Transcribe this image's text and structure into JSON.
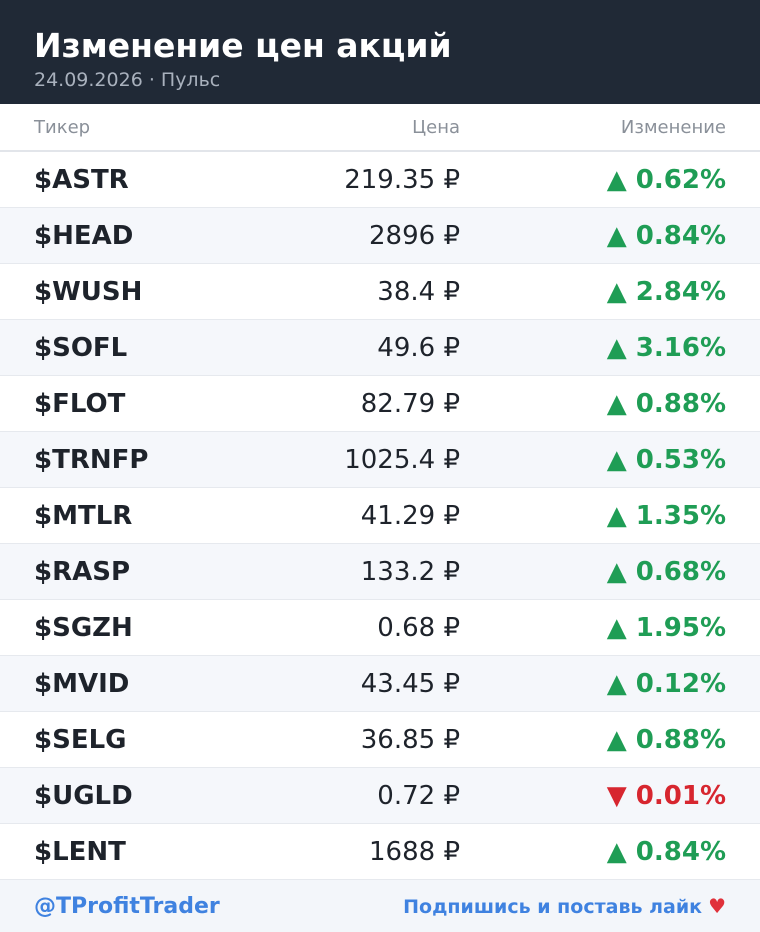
{
  "header": {
    "title": "Изменение цен акций",
    "subtitle": "24.09.2026 · Пульс"
  },
  "table": {
    "columns": [
      "Тикер",
      "Цена",
      "Изменение"
    ],
    "rows": [
      {
        "ticker": "$ASTR",
        "price": "219.35 ₽",
        "change": "▲ 0.62%",
        "color": "#1f9d55"
      },
      {
        "ticker": "$HEAD",
        "price": "2896 ₽",
        "change": "▲ 0.84%",
        "color": "#1f9d55"
      },
      {
        "ticker": "$WUSH",
        "price": "38.4 ₽",
        "change": "▲ 2.84%",
        "color": "#1f9d55"
      },
      {
        "ticker": "$SOFL",
        "price": "49.6 ₽",
        "change": "▲ 3.16%",
        "color": "#1f9d55"
      },
      {
        "ticker": "$FLOT",
        "price": "82.79 ₽",
        "change": "▲ 0.88%",
        "color": "#1f9d55"
      },
      {
        "ticker": "$TRNFP",
        "price": "1025.4 ₽",
        "change": "▲ 0.53%",
        "color": "#1f9d55"
      },
      {
        "ticker": "$MTLR",
        "price": "41.29 ₽",
        "change": "▲ 1.35%",
        "color": "#1f9d55"
      },
      {
        "ticker": "$RASP",
        "price": "133.2 ₽",
        "change": "▲ 0.68%",
        "color": "#1f9d55"
      },
      {
        "ticker": "$SGZH",
        "price": "0.68 ₽",
        "change": "▲ 1.95%",
        "color": "#1f9d55"
      },
      {
        "ticker": "$MVID",
        "price": "43.45 ₽",
        "change": "▲ 0.12%",
        "color": "#1f9d55"
      },
      {
        "ticker": "$SELG",
        "price": "36.85 ₽",
        "change": "▲ 0.88%",
        "color": "#1f9d55"
      },
      {
        "ticker": "$UGLD",
        "price": "0.72 ₽",
        "change": "▼ 0.01%",
        "color": "#d7262f"
      },
      {
        "ticker": "$LENT",
        "price": "1688 ₽",
        "change": "▲ 0.84%",
        "color": "#1f9d55"
      }
    ]
  },
  "footer": {
    "handle": "@TProfitTrader",
    "cta": "Подпишись и поставь лайк"
  }
}
